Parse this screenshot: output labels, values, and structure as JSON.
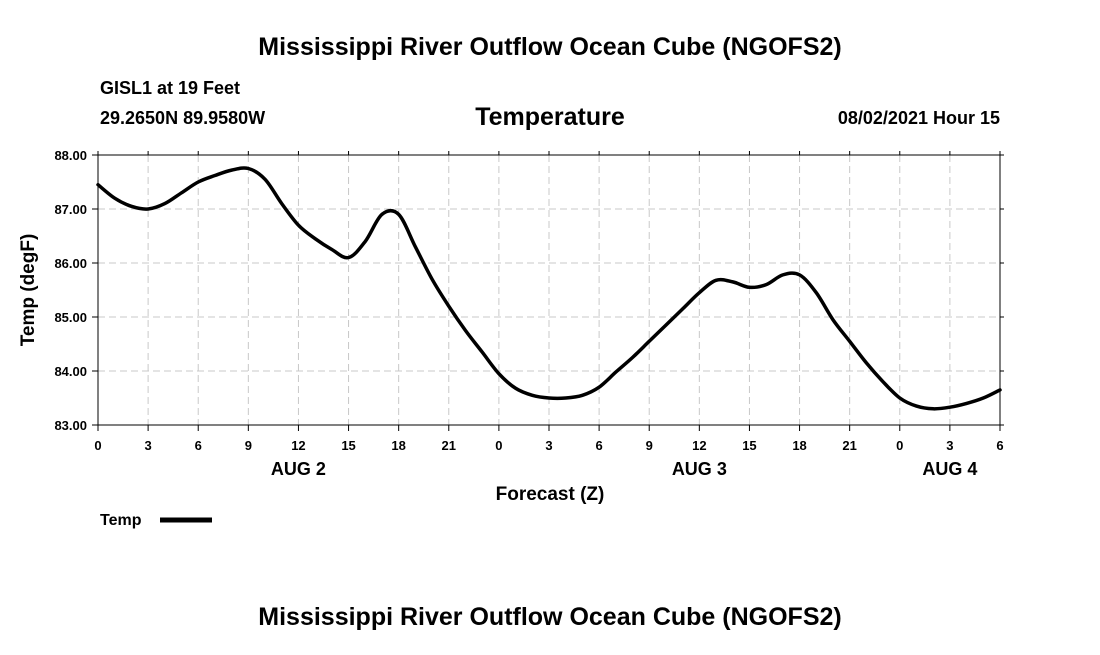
{
  "chart_data": {
    "type": "line",
    "title": "Mississippi River Outflow Ocean Cube (NGOFS2)",
    "footer_title": "Mississippi River Outflow Ocean Cube (NGOFS2)",
    "subtitle": "Temperature",
    "station": "GISL1 at 19 Feet",
    "location": "29.2650N  89.9580W",
    "timestamp": "08/02/2021 Hour 15",
    "xlabel": "Forecast (Z)",
    "ylabel": "Temp (degF)",
    "xlim": [
      0,
      54
    ],
    "ylim": [
      83.0,
      88.0
    ],
    "grid": true,
    "x_ticks": [
      0,
      3,
      6,
      9,
      12,
      15,
      18,
      21,
      24,
      27,
      30,
      33,
      36,
      39,
      42,
      45,
      48,
      51,
      54
    ],
    "x_tick_labels": [
      "0",
      "3",
      "6",
      "9",
      "12",
      "15",
      "18",
      "21",
      "0",
      "3",
      "6",
      "9",
      "12",
      "15",
      "18",
      "21",
      "0",
      "3",
      "6"
    ],
    "y_ticks": [
      83.0,
      84.0,
      85.0,
      86.0,
      87.0,
      88.0
    ],
    "y_tick_labels": [
      "83.00",
      "84.00",
      "85.00",
      "86.00",
      "87.00",
      "88.00"
    ],
    "date_labels": [
      {
        "x": 12,
        "label": "AUG 2"
      },
      {
        "x": 36,
        "label": "AUG 3"
      },
      {
        "x": 51,
        "label": "AUG 4"
      }
    ],
    "legend": {
      "label": "Temp",
      "position": "bottom-left"
    },
    "series": [
      {
        "name": "Temp",
        "color": "#000000",
        "x": [
          0,
          1,
          2,
          3,
          4,
          5,
          6,
          7,
          8,
          9,
          10,
          11,
          12,
          13,
          14,
          15,
          16,
          17,
          18,
          19,
          20,
          21,
          22,
          23,
          24,
          25,
          26,
          27,
          28,
          29,
          30,
          31,
          32,
          33,
          34,
          35,
          36,
          37,
          38,
          39,
          40,
          41,
          42,
          43,
          44,
          45,
          46,
          47,
          48,
          49,
          50,
          51,
          52,
          53,
          54
        ],
        "values": [
          87.45,
          87.2,
          87.05,
          87.0,
          87.1,
          87.3,
          87.5,
          87.62,
          87.72,
          87.75,
          87.55,
          87.1,
          86.7,
          86.45,
          86.25,
          86.1,
          86.4,
          86.9,
          86.9,
          86.3,
          85.7,
          85.2,
          84.75,
          84.35,
          83.95,
          83.68,
          83.55,
          83.5,
          83.5,
          83.55,
          83.7,
          83.98,
          84.25,
          84.55,
          84.85,
          85.15,
          85.45,
          85.68,
          85.65,
          85.55,
          85.6,
          85.78,
          85.78,
          85.45,
          84.95,
          84.55,
          84.15,
          83.8,
          83.5,
          83.35,
          83.3,
          83.33,
          83.4,
          83.5,
          83.65
        ]
      }
    ]
  }
}
